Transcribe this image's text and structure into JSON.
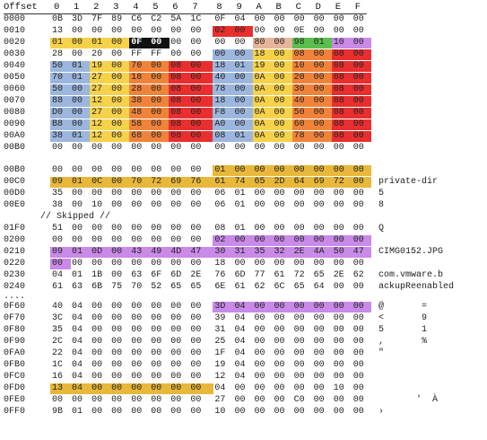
{
  "header": {
    "offset_label": "Offset",
    "cols": [
      "0",
      "1",
      "2",
      "3",
      "4",
      "5",
      "6",
      "7",
      "8",
      "9",
      "A",
      "B",
      "C",
      "D",
      "E",
      "F"
    ]
  },
  "colors": {
    "yellow": "#f5d24a",
    "gold": "#e8b83a",
    "blue": "#9cb6de",
    "orange": "#f0833a",
    "red": "#e82e2e",
    "purple": "#c98ae8",
    "green": "#59c04e",
    "peach": "#e7b49c",
    "black": "#111111"
  },
  "rows": [
    {
      "off": "0000",
      "hex": [
        "0B",
        "3D",
        "7F",
        "89",
        "C6",
        "C2",
        "5A",
        "1C",
        "0F",
        "04",
        "00",
        "00",
        "00",
        "00",
        "00",
        "00"
      ],
      "ascii": ""
    },
    {
      "off": "0010",
      "hex": [
        "13",
        "00",
        "00",
        "00",
        "00",
        "00",
        "00",
        "00",
        "02",
        "00",
        "00",
        "00",
        "0E",
        "00",
        "00",
        "00"
      ],
      "ascii": "",
      "hl": {
        "8": "red",
        "9": "red"
      }
    },
    {
      "off": "0020",
      "hex": [
        "01",
        "00",
        "01",
        "00",
        "0F",
        "00",
        "00",
        "00",
        "00",
        "00",
        "80",
        "00",
        "98",
        "01",
        "10",
        "00"
      ],
      "ascii": "",
      "hl": {
        "0": "yellow",
        "1": "yellow",
        "2": "yellow",
        "3": "yellow",
        "4": "black",
        "5": "black",
        "10": "peach",
        "11": "peach",
        "12": "green",
        "13": "green",
        "14": "purple",
        "15": "purple"
      }
    },
    {
      "off": "0030",
      "hex": [
        "28",
        "00",
        "20",
        "00",
        "FF",
        "FF",
        "00",
        "00",
        "00",
        "00",
        "18",
        "00",
        "08",
        "00",
        "08",
        "00"
      ],
      "ascii": "",
      "hl": {
        "8": "blue",
        "9": "blue",
        "10": "yellow",
        "11": "yellow",
        "12": "orange",
        "13": "orange",
        "14": "red",
        "15": "red"
      }
    },
    {
      "off": "0040",
      "hex": [
        "50",
        "01",
        "19",
        "00",
        "70",
        "00",
        "08",
        "00",
        "18",
        "01",
        "19",
        "00",
        "10",
        "00",
        "08",
        "00"
      ],
      "ascii": "",
      "hl": {
        "0": "blue",
        "1": "blue",
        "2": "yellow",
        "3": "yellow",
        "4": "orange",
        "5": "orange",
        "6": "red",
        "7": "red",
        "8": "blue",
        "9": "blue",
        "10": "yellow",
        "11": "yellow",
        "12": "orange",
        "13": "orange",
        "14": "red",
        "15": "red"
      }
    },
    {
      "off": "0050",
      "hex": [
        "70",
        "01",
        "27",
        "00",
        "18",
        "00",
        "08",
        "00",
        "40",
        "00",
        "0A",
        "00",
        "20",
        "00",
        "08",
        "00"
      ],
      "ascii": "",
      "hl": {
        "0": "blue",
        "1": "blue",
        "2": "yellow",
        "3": "yellow",
        "4": "orange",
        "5": "orange",
        "6": "red",
        "7": "red",
        "8": "blue",
        "9": "blue",
        "10": "yellow",
        "11": "yellow",
        "12": "orange",
        "13": "orange",
        "14": "red",
        "15": "red"
      }
    },
    {
      "off": "0060",
      "hex": [
        "50",
        "00",
        "27",
        "00",
        "28",
        "00",
        "08",
        "00",
        "78",
        "00",
        "0A",
        "00",
        "30",
        "00",
        "08",
        "00"
      ],
      "ascii": "",
      "hl": {
        "0": "blue",
        "1": "blue",
        "2": "yellow",
        "3": "yellow",
        "4": "orange",
        "5": "orange",
        "6": "red",
        "7": "red",
        "8": "blue",
        "9": "blue",
        "10": "yellow",
        "11": "yellow",
        "12": "orange",
        "13": "orange",
        "14": "red",
        "15": "red"
      }
    },
    {
      "off": "0070",
      "hex": [
        "88",
        "00",
        "12",
        "00",
        "38",
        "00",
        "08",
        "00",
        "18",
        "00",
        "0A",
        "00",
        "40",
        "00",
        "08",
        "00"
      ],
      "ascii": "",
      "hl": {
        "0": "blue",
        "1": "blue",
        "2": "yellow",
        "3": "yellow",
        "4": "orange",
        "5": "orange",
        "6": "red",
        "7": "red",
        "8": "blue",
        "9": "blue",
        "10": "yellow",
        "11": "yellow",
        "12": "orange",
        "13": "orange",
        "14": "red",
        "15": "red"
      }
    },
    {
      "off": "0080",
      "hex": [
        "D0",
        "00",
        "27",
        "00",
        "48",
        "00",
        "08",
        "00",
        "F8",
        "00",
        "0A",
        "00",
        "50",
        "00",
        "08",
        "00"
      ],
      "ascii": "",
      "hl": {
        "0": "blue",
        "1": "blue",
        "2": "yellow",
        "3": "yellow",
        "4": "orange",
        "5": "orange",
        "6": "red",
        "7": "red",
        "8": "blue",
        "9": "blue",
        "10": "yellow",
        "11": "yellow",
        "12": "orange",
        "13": "orange",
        "14": "red",
        "15": "red"
      }
    },
    {
      "off": "0090",
      "hex": [
        "B8",
        "00",
        "12",
        "00",
        "58",
        "00",
        "08",
        "00",
        "A0",
        "00",
        "0A",
        "00",
        "60",
        "00",
        "08",
        "00"
      ],
      "ascii": "",
      "hl": {
        "0": "blue",
        "1": "blue",
        "2": "yellow",
        "3": "yellow",
        "4": "orange",
        "5": "orange",
        "6": "red",
        "7": "red",
        "8": "blue",
        "9": "blue",
        "10": "yellow",
        "11": "yellow",
        "12": "orange",
        "13": "orange",
        "14": "red",
        "15": "red"
      }
    },
    {
      "off": "00A0",
      "hex": [
        "38",
        "01",
        "12",
        "00",
        "68",
        "00",
        "08",
        "00",
        "08",
        "01",
        "0A",
        "00",
        "78",
        "00",
        "08",
        "00"
      ],
      "ascii": "",
      "hl": {
        "0": "blue",
        "1": "blue",
        "2": "yellow",
        "3": "yellow",
        "4": "orange",
        "5": "orange",
        "6": "red",
        "7": "red",
        "8": "blue",
        "9": "blue",
        "10": "yellow",
        "11": "yellow",
        "12": "orange",
        "13": "orange",
        "14": "red",
        "15": "red"
      }
    },
    {
      "off": "00B0",
      "hex": [
        "00",
        "00",
        "00",
        "00",
        "00",
        "00",
        "00",
        "00",
        "00",
        "00",
        "00",
        "00",
        "00",
        "00",
        "00",
        "00"
      ],
      "ascii": ""
    },
    {
      "gap": true
    },
    {
      "off": "00B0",
      "hex": [
        "00",
        "00",
        "00",
        "00",
        "00",
        "00",
        "00",
        "00",
        "01",
        "00",
        "00",
        "00",
        "00",
        "00",
        "00",
        "00"
      ],
      "ascii": "",
      "hl": {
        "8": "gold",
        "9": "gold",
        "10": "gold",
        "11": "gold",
        "12": "gold",
        "13": "gold",
        "14": "gold",
        "15": "gold"
      }
    },
    {
      "off": "00C0",
      "hex": [
        "09",
        "01",
        "0C",
        "00",
        "70",
        "72",
        "69",
        "76",
        "61",
        "74",
        "65",
        "2D",
        "64",
        "69",
        "72",
        "00"
      ],
      "ascii": "private-dir",
      "hl": {
        "0": "gold",
        "1": "gold",
        "2": "gold",
        "3": "gold",
        "4": "gold",
        "5": "gold",
        "6": "gold",
        "7": "gold",
        "8": "gold",
        "9": "gold",
        "10": "gold",
        "11": "gold",
        "12": "gold",
        "13": "gold",
        "14": "gold",
        "15": "gold"
      }
    },
    {
      "off": "00D0",
      "hex": [
        "35",
        "00",
        "00",
        "00",
        "00",
        "00",
        "00",
        "00",
        "06",
        "01",
        "00",
        "00",
        "00",
        "00",
        "00",
        "00"
      ],
      "ascii": "5"
    },
    {
      "off": "00E0",
      "hex": [
        "38",
        "00",
        "10",
        "00",
        "00",
        "00",
        "00",
        "00",
        "06",
        "01",
        "00",
        "00",
        "00",
        "00",
        "00",
        "00"
      ],
      "ascii": "8"
    },
    {
      "skip": "// Skipped //"
    },
    {
      "off": "01F0",
      "hex": [
        "51",
        "00",
        "00",
        "00",
        "00",
        "00",
        "00",
        "00",
        "08",
        "01",
        "00",
        "00",
        "00",
        "00",
        "00",
        "00"
      ],
      "ascii": "Q"
    },
    {
      "off": "0200",
      "hex": [
        "00",
        "00",
        "00",
        "00",
        "00",
        "00",
        "00",
        "00",
        "02",
        "00",
        "00",
        "00",
        "00",
        "00",
        "00",
        "00"
      ],
      "ascii": "",
      "hl": {
        "8": "purple",
        "9": "purple",
        "10": "purple",
        "11": "purple",
        "12": "purple",
        "13": "purple",
        "14": "purple",
        "15": "purple"
      }
    },
    {
      "off": "0210",
      "hex": [
        "09",
        "01",
        "0D",
        "00",
        "43",
        "49",
        "4D",
        "47",
        "30",
        "31",
        "35",
        "32",
        "2E",
        "4A",
        "50",
        "47"
      ],
      "ascii": "CIMG0152.JPG",
      "hl": {
        "0": "purple",
        "1": "purple",
        "2": "purple",
        "3": "purple",
        "4": "purple",
        "5": "purple",
        "6": "purple",
        "7": "purple",
        "8": "purple",
        "9": "purple",
        "10": "purple",
        "11": "purple",
        "12": "purple",
        "13": "purple",
        "14": "purple",
        "15": "purple"
      }
    },
    {
      "off": "0220",
      "hex": [
        "00",
        "00",
        "00",
        "00",
        "00",
        "00",
        "00",
        "00",
        "18",
        "00",
        "00",
        "00",
        "00",
        "00",
        "00",
        "00"
      ],
      "ascii": "",
      "hl": {
        "0": "purple"
      }
    },
    {
      "off": "0230",
      "hex": [
        "04",
        "01",
        "1B",
        "00",
        "63",
        "6F",
        "6D",
        "2E",
        "76",
        "6D",
        "77",
        "61",
        "72",
        "65",
        "2E",
        "62"
      ],
      "ascii": "com.vmware.b"
    },
    {
      "off": "0240",
      "hex": [
        "61",
        "63",
        "6B",
        "75",
        "70",
        "52",
        "65",
        "65",
        "6E",
        "61",
        "62",
        "6C",
        "65",
        "64",
        "00",
        "00"
      ],
      "ascii": "ackupReenabled"
    },
    {
      "dots": "...."
    },
    {
      "off": "0F60",
      "hex": [
        "40",
        "04",
        "00",
        "00",
        "00",
        "00",
        "00",
        "00",
        "3D",
        "04",
        "00",
        "00",
        "00",
        "00",
        "00",
        "00"
      ],
      "ascii": "@       =",
      "hl": {
        "8": "purple",
        "9": "purple",
        "10": "purple",
        "11": "purple",
        "12": "purple",
        "13": "purple",
        "14": "purple",
        "15": "purple"
      }
    },
    {
      "off": "0F70",
      "hex": [
        "3C",
        "04",
        "00",
        "00",
        "00",
        "00",
        "00",
        "00",
        "39",
        "04",
        "00",
        "00",
        "00",
        "00",
        "00",
        "00"
      ],
      "ascii": "<       9"
    },
    {
      "off": "0F80",
      "hex": [
        "35",
        "04",
        "00",
        "00",
        "00",
        "00",
        "00",
        "00",
        "31",
        "04",
        "00",
        "00",
        "00",
        "00",
        "00",
        "00"
      ],
      "ascii": "5       1"
    },
    {
      "off": "0F90",
      "hex": [
        "2C",
        "04",
        "00",
        "00",
        "00",
        "00",
        "00",
        "00",
        "25",
        "04",
        "00",
        "00",
        "00",
        "00",
        "00",
        "00"
      ],
      "ascii": ",       %"
    },
    {
      "off": "0FA0",
      "hex": [
        "22",
        "04",
        "00",
        "00",
        "00",
        "00",
        "00",
        "00",
        "1F",
        "04",
        "00",
        "00",
        "00",
        "00",
        "00",
        "00"
      ],
      "ascii": "\""
    },
    {
      "off": "0FB0",
      "hex": [
        "1C",
        "04",
        "00",
        "00",
        "00",
        "00",
        "00",
        "00",
        "19",
        "04",
        "00",
        "00",
        "00",
        "00",
        "00",
        "00"
      ],
      "ascii": ""
    },
    {
      "off": "0FC0",
      "hex": [
        "16",
        "04",
        "00",
        "00",
        "00",
        "00",
        "00",
        "00",
        "12",
        "04",
        "00",
        "00",
        "00",
        "00",
        "00",
        "00"
      ],
      "ascii": ""
    },
    {
      "off": "0FD0",
      "hex": [
        "13",
        "04",
        "00",
        "00",
        "00",
        "00",
        "00",
        "00",
        "04",
        "00",
        "00",
        "00",
        "00",
        "00",
        "10",
        "00"
      ],
      "ascii": "",
      "hl": {
        "0": "gold",
        "1": "gold",
        "2": "gold",
        "3": "gold",
        "4": "gold",
        "5": "gold",
        "6": "gold",
        "7": "gold"
      }
    },
    {
      "off": "0FE0",
      "hex": [
        "00",
        "00",
        "00",
        "00",
        "00",
        "00",
        "00",
        "00",
        "27",
        "00",
        "00",
        "00",
        "C0",
        "00",
        "00",
        "00"
      ],
      "ascii": "       '  À"
    },
    {
      "off": "0FF0",
      "hex": [
        "9B",
        "01",
        "00",
        "00",
        "00",
        "00",
        "00",
        "00",
        "10",
        "00",
        "00",
        "00",
        "00",
        "00",
        "00",
        "00"
      ],
      "ascii": "›"
    }
  ]
}
